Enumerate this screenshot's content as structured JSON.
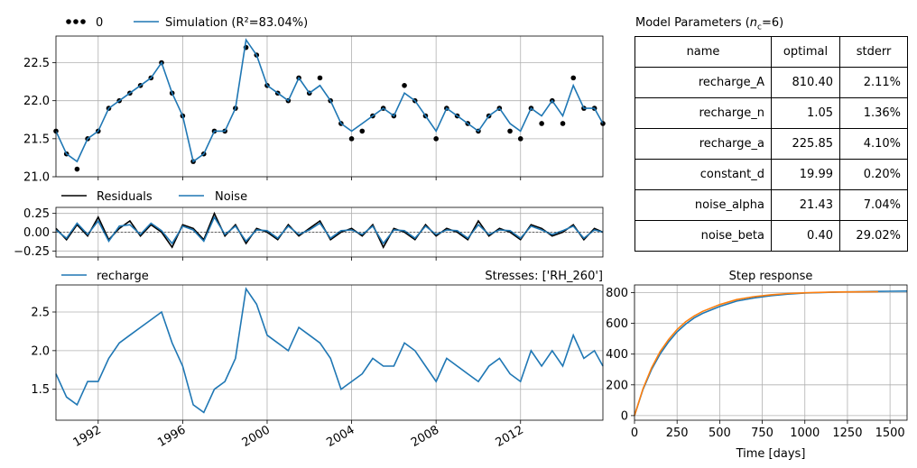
{
  "chart_data": [
    {
      "type": "scatter+line",
      "panel": "head",
      "legend": [
        "0",
        "Simulation (R²=83.04%)"
      ],
      "legend_placement": "top-left-outside",
      "ylim": [
        21.0,
        22.85
      ],
      "yticks": [
        "21.0",
        "21.5",
        "22.0",
        "22.5"
      ],
      "xlim": [
        1990.0,
        2015.9
      ],
      "grid": true,
      "colors": {
        "observed": "#000000",
        "simulation": "#1f77b4"
      },
      "series": [
        {
          "name": "0",
          "kind": "points",
          "x": [
            1990.0,
            1990.5,
            1991.0,
            1991.5,
            1992.0,
            1992.5,
            1993.0,
            1993.5,
            1994.0,
            1994.5,
            1995.0,
            1995.5,
            1996.0,
            1996.5,
            1997.0,
            1997.5,
            1998.0,
            1998.5,
            1999.0,
            1999.5,
            2000.0,
            2000.5,
            2001.0,
            2001.5,
            2002.0,
            2002.5,
            2003.0,
            2003.5,
            2004.0,
            2004.5,
            2005.0,
            2005.5,
            2006.0,
            2006.5,
            2007.0,
            2007.5,
            2008.0,
            2008.5,
            2009.0,
            2009.5,
            2010.0,
            2010.5,
            2011.0,
            2011.5,
            2012.0,
            2012.5,
            2013.0,
            2013.5,
            2014.0,
            2014.5,
            2015.0,
            2015.5,
            2015.9
          ],
          "y": [
            21.6,
            21.3,
            21.1,
            21.5,
            21.6,
            21.9,
            22.0,
            22.1,
            22.2,
            22.3,
            22.5,
            22.1,
            21.8,
            21.2,
            21.3,
            21.6,
            21.6,
            21.9,
            22.7,
            22.6,
            22.2,
            22.1,
            22.0,
            22.3,
            22.1,
            22.3,
            22.0,
            21.7,
            21.5,
            21.6,
            21.8,
            21.9,
            21.8,
            22.2,
            22.0,
            21.8,
            21.5,
            21.9,
            21.8,
            21.7,
            21.6,
            21.8,
            21.9,
            21.6,
            21.5,
            21.9,
            21.7,
            22.0,
            21.7,
            22.3,
            21.9,
            21.9,
            21.7
          ]
        },
        {
          "name": "Simulation",
          "kind": "line",
          "x": [
            1990.0,
            1990.5,
            1991.0,
            1991.5,
            1992.0,
            1992.5,
            1993.0,
            1993.5,
            1994.0,
            1994.5,
            1995.0,
            1995.5,
            1996.0,
            1996.5,
            1997.0,
            1997.5,
            1998.0,
            1998.5,
            1999.0,
            1999.5,
            2000.0,
            2000.5,
            2001.0,
            2001.5,
            2002.0,
            2002.5,
            2003.0,
            2003.5,
            2004.0,
            2004.5,
            2005.0,
            2005.5,
            2006.0,
            2006.5,
            2007.0,
            2007.5,
            2008.0,
            2008.5,
            2009.0,
            2009.5,
            2010.0,
            2010.5,
            2011.0,
            2011.5,
            2012.0,
            2012.5,
            2013.0,
            2013.5,
            2014.0,
            2014.5,
            2015.0,
            2015.5,
            2015.9
          ],
          "y": [
            21.6,
            21.3,
            21.2,
            21.5,
            21.6,
            21.9,
            22.0,
            22.1,
            22.2,
            22.3,
            22.5,
            22.1,
            21.8,
            21.2,
            21.3,
            21.6,
            21.6,
            21.9,
            22.8,
            22.6,
            22.2,
            22.1,
            22.0,
            22.3,
            22.1,
            22.2,
            22.0,
            21.7,
            21.6,
            21.7,
            21.8,
            21.9,
            21.8,
            22.1,
            22.0,
            21.8,
            21.6,
            21.9,
            21.8,
            21.7,
            21.6,
            21.8,
            21.9,
            21.7,
            21.6,
            21.9,
            21.8,
            22.0,
            21.8,
            22.2,
            21.9,
            21.9,
            21.7
          ]
        }
      ]
    },
    {
      "type": "line",
      "panel": "residuals",
      "legend": [
        "Residuals",
        "Noise"
      ],
      "legend_placement": "top-left-outside",
      "ylim": [
        -0.33,
        0.33
      ],
      "yticks": [
        "−0.25",
        "0.00",
        "0.25"
      ],
      "xlim": [
        1990.0,
        2015.9
      ],
      "grid": true,
      "colors": {
        "residuals": "#000000",
        "noise": "#1f77b4"
      },
      "series": [
        {
          "name": "Residuals",
          "x": [
            1990.0,
            1990.5,
            1991.0,
            1991.5,
            1992.0,
            1992.5,
            1993.0,
            1993.5,
            1994.0,
            1994.5,
            1995.0,
            1995.5,
            1996.0,
            1996.5,
            1997.0,
            1997.5,
            1998.0,
            1998.5,
            1999.0,
            1999.5,
            2000.0,
            2000.5,
            2001.0,
            2001.5,
            2002.0,
            2002.5,
            2003.0,
            2003.5,
            2004.0,
            2004.5,
            2005.0,
            2005.5,
            2006.0,
            2006.5,
            2007.0,
            2007.5,
            2008.0,
            2008.5,
            2009.0,
            2009.5,
            2010.0,
            2010.5,
            2011.0,
            2011.5,
            2012.0,
            2012.5,
            2013.0,
            2013.5,
            2014.0,
            2014.5,
            2015.0,
            2015.5,
            2015.9
          ],
          "y": [
            0.05,
            -0.1,
            0.1,
            -0.05,
            0.2,
            -0.1,
            0.05,
            0.15,
            -0.05,
            0.1,
            0.0,
            -0.2,
            0.1,
            0.05,
            -0.1,
            0.25,
            -0.05,
            0.1,
            -0.15,
            0.05,
            0.0,
            -0.1,
            0.1,
            -0.05,
            0.05,
            0.15,
            -0.1,
            0.0,
            0.05,
            -0.05,
            0.1,
            -0.2,
            0.05,
            0.0,
            -0.1,
            0.1,
            -0.05,
            0.05,
            0.0,
            -0.1,
            0.15,
            -0.05,
            0.05,
            0.0,
            -0.1,
            0.1,
            0.05,
            -0.05,
            0.0,
            0.1,
            -0.1,
            0.05,
            0.0
          ]
        },
        {
          "name": "Noise",
          "x": [
            1990.0,
            1990.5,
            1991.0,
            1991.5,
            1992.0,
            1992.5,
            1993.0,
            1993.5,
            1994.0,
            1994.5,
            1995.0,
            1995.5,
            1996.0,
            1996.5,
            1997.0,
            1997.5,
            1998.0,
            1998.5,
            1999.0,
            1999.5,
            2000.0,
            2000.5,
            2001.0,
            2001.5,
            2002.0,
            2002.5,
            2003.0,
            2003.5,
            2004.0,
            2004.5,
            2005.0,
            2005.5,
            2006.0,
            2006.5,
            2007.0,
            2007.5,
            2008.0,
            2008.5,
            2009.0,
            2009.5,
            2010.0,
            2010.5,
            2011.0,
            2011.5,
            2012.0,
            2012.5,
            2013.0,
            2013.5,
            2014.0,
            2014.5,
            2015.0,
            2015.5,
            2015.9
          ],
          "y": [
            0.03,
            -0.08,
            0.12,
            -0.03,
            0.15,
            -0.12,
            0.08,
            0.1,
            -0.03,
            0.12,
            0.02,
            -0.15,
            0.08,
            0.03,
            -0.12,
            0.2,
            -0.03,
            0.08,
            -0.12,
            0.03,
            0.02,
            -0.08,
            0.08,
            -0.03,
            0.03,
            0.12,
            -0.08,
            0.02,
            0.03,
            -0.03,
            0.08,
            -0.15,
            0.03,
            0.02,
            -0.08,
            0.08,
            -0.03,
            0.03,
            0.02,
            -0.08,
            0.1,
            -0.03,
            0.03,
            0.02,
            -0.08,
            0.08,
            0.03,
            -0.03,
            0.02,
            0.08,
            -0.08,
            0.03,
            0.0
          ]
        }
      ]
    },
    {
      "type": "line",
      "panel": "contribution",
      "legend": [
        "recharge"
      ],
      "legend_placement": "top-left-outside",
      "title_right": "Stresses: ['RH_260']",
      "ylim": [
        1.1,
        2.85
      ],
      "yticks": [
        "1.5",
        "2.0",
        "2.5"
      ],
      "xlim": [
        1990.0,
        2015.9
      ],
      "xticks": [
        "1992",
        "1996",
        "2000",
        "2004",
        "2008",
        "2012"
      ],
      "grid": true,
      "colors": {
        "recharge": "#1f77b4"
      },
      "series": [
        {
          "name": "recharge",
          "x": [
            1990.0,
            1990.5,
            1991.0,
            1991.5,
            1992.0,
            1992.5,
            1993.0,
            1993.5,
            1994.0,
            1994.5,
            1995.0,
            1995.5,
            1996.0,
            1996.5,
            1997.0,
            1997.5,
            1998.0,
            1998.5,
            1999.0,
            1999.5,
            2000.0,
            2000.5,
            2001.0,
            2001.5,
            2002.0,
            2002.5,
            2003.0,
            2003.5,
            2004.0,
            2004.5,
            2005.0,
            2005.5,
            2006.0,
            2006.5,
            2007.0,
            2007.5,
            2008.0,
            2008.5,
            2009.0,
            2009.5,
            2010.0,
            2010.5,
            2011.0,
            2011.5,
            2012.0,
            2012.5,
            2013.0,
            2013.5,
            2014.0,
            2014.5,
            2015.0,
            2015.5,
            2015.9
          ],
          "y": [
            1.7,
            1.4,
            1.3,
            1.6,
            1.6,
            1.9,
            2.1,
            2.2,
            2.3,
            2.4,
            2.5,
            2.1,
            1.8,
            1.3,
            1.2,
            1.5,
            1.6,
            1.9,
            2.8,
            2.6,
            2.2,
            2.1,
            2.0,
            2.3,
            2.2,
            2.1,
            1.9,
            1.5,
            1.6,
            1.7,
            1.9,
            1.8,
            1.8,
            2.1,
            2.0,
            1.8,
            1.6,
            1.9,
            1.8,
            1.7,
            1.6,
            1.8,
            1.9,
            1.7,
            1.6,
            2.0,
            1.8,
            2.0,
            1.8,
            2.2,
            1.9,
            2.0,
            1.8
          ]
        }
      ]
    },
    {
      "type": "line",
      "panel": "step-response",
      "title": "Step response",
      "xlabel": "Time [days]",
      "xlim": [
        0,
        1600
      ],
      "ylim": [
        -30,
        850
      ],
      "xticks": [
        0,
        250,
        500,
        750,
        1000,
        1250,
        1500
      ],
      "yticks": [
        0,
        200,
        400,
        600,
        800
      ],
      "grid": true,
      "colors": {
        "a": "#1f77b4",
        "b": "#ff7f0e"
      },
      "series": [
        {
          "x": [
            0,
            50,
            100,
            150,
            200,
            250,
            300,
            350,
            400,
            500,
            600,
            700,
            800,
            900,
            1000,
            1100,
            1200,
            1300,
            1400,
            1500,
            1600
          ],
          "y": [
            0,
            170,
            300,
            400,
            480,
            545,
            595,
            635,
            665,
            710,
            745,
            765,
            780,
            790,
            797,
            801,
            804,
            806,
            808,
            809,
            810
          ]
        },
        {
          "x": [
            0,
            50,
            100,
            150,
            200,
            250,
            300,
            350,
            400,
            500,
            600,
            700,
            800,
            900,
            1000,
            1100,
            1200,
            1300,
            1430
          ],
          "y": [
            0,
            175,
            310,
            415,
            495,
            560,
            610,
            648,
            678,
            722,
            755,
            774,
            786,
            794,
            799,
            802,
            804,
            805,
            806
          ]
        }
      ]
    }
  ],
  "params": {
    "title_prefix": "Model Parameters (",
    "title_nc": "n",
    "title_nc_sub": "c",
    "title_suffix": "=6)",
    "headers": [
      "name",
      "optimal",
      "stderr"
    ],
    "rows": [
      [
        "recharge_A",
        "810.40",
        "2.11%"
      ],
      [
        "recharge_n",
        "1.05",
        "1.36%"
      ],
      [
        "recharge_a",
        "225.85",
        "4.10%"
      ],
      [
        "constant_d",
        "19.99",
        "0.20%"
      ],
      [
        "noise_alpha",
        "21.43",
        "7.04%"
      ],
      [
        "noise_beta",
        "0.40",
        "29.02%"
      ]
    ]
  }
}
